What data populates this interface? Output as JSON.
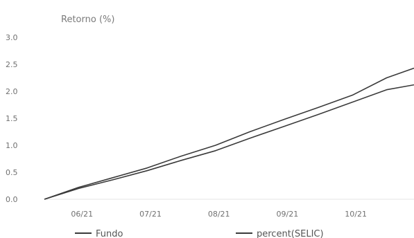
{
  "chart_data": {
    "type": "line",
    "title": "",
    "ylabel": "Retorno (%)",
    "xlabel": "",
    "ylim": [
      0,
      3.0
    ],
    "yticks": [
      0.0,
      0.5,
      1.0,
      1.5,
      2.0,
      2.5,
      3.0
    ],
    "ytick_labels": [
      "0.0",
      "0.5",
      "1.0",
      "1.5",
      "2.0",
      "2.5",
      "3.0"
    ],
    "xlim": [
      0,
      5.4
    ],
    "xticks": [
      {
        "x": 0.55,
        "label": "06/21"
      },
      {
        "x": 1.55,
        "label": "07/21"
      },
      {
        "x": 2.55,
        "label": "08/21"
      },
      {
        "x": 3.55,
        "label": "09/21"
      },
      {
        "x": 4.55,
        "label": "10/21"
      }
    ],
    "grid": false,
    "legend_position": "bottom",
    "series": [
      {
        "name": "Fundo",
        "color": "#3a3a3a",
        "points": [
          [
            0,
            0.0
          ],
          [
            0.5,
            0.2
          ],
          [
            1.0,
            0.36
          ],
          [
            1.5,
            0.53
          ],
          [
            2.0,
            0.72
          ],
          [
            2.5,
            0.9
          ],
          [
            3.0,
            1.13
          ],
          [
            3.5,
            1.35
          ],
          [
            4.0,
            1.57
          ],
          [
            4.5,
            1.8
          ],
          [
            5.0,
            2.03
          ],
          [
            5.4,
            2.12
          ]
        ]
      },
      {
        "name": "percent(SELIC)",
        "color": "#3a3a3a",
        "points": [
          [
            0,
            0.0
          ],
          [
            0.5,
            0.22
          ],
          [
            1.0,
            0.4
          ],
          [
            1.5,
            0.58
          ],
          [
            2.0,
            0.8
          ],
          [
            2.5,
            1.0
          ],
          [
            3.0,
            1.25
          ],
          [
            3.5,
            1.48
          ],
          [
            4.0,
            1.7
          ],
          [
            4.5,
            1.93
          ],
          [
            5.0,
            2.25
          ],
          [
            5.4,
            2.43
          ]
        ]
      }
    ]
  }
}
